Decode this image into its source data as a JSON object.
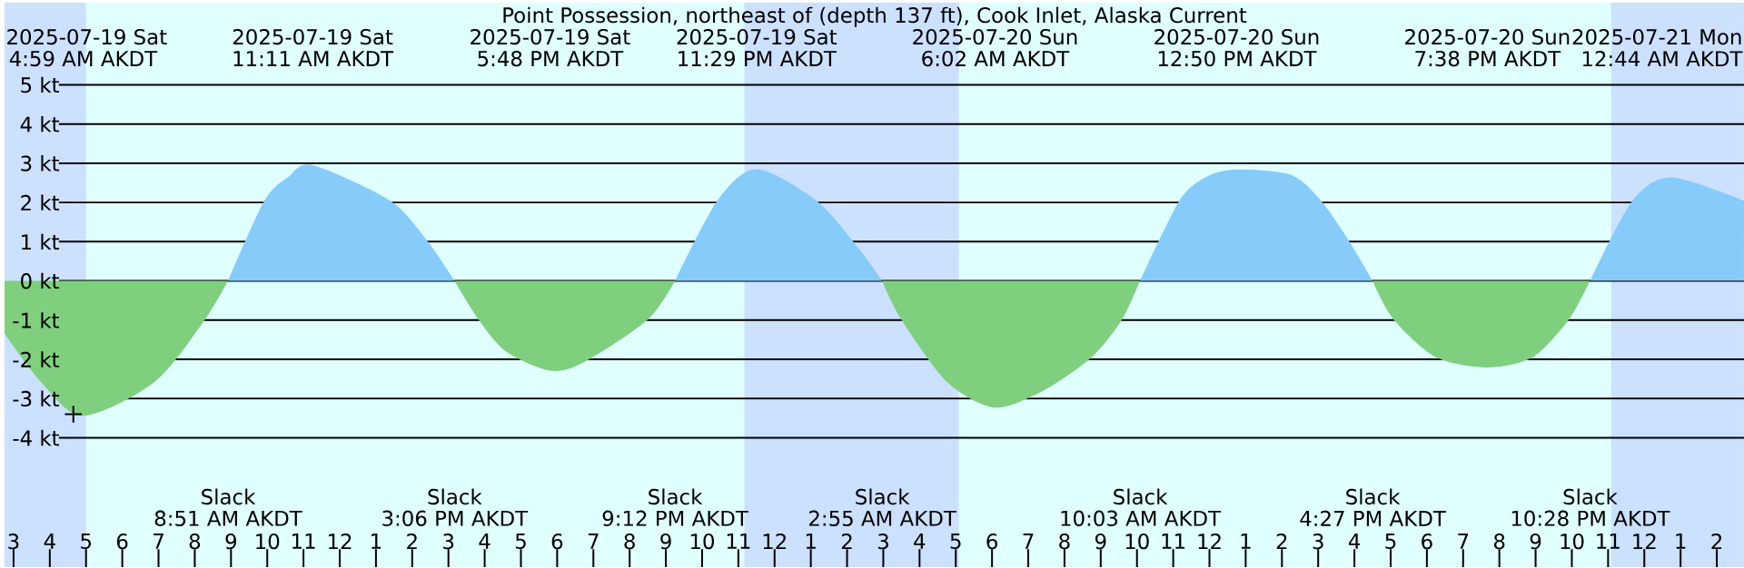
{
  "chart_data": {
    "type": "area",
    "title": "Point Possession, northeast of (depth 137 ft), Cook Inlet, Alaska Current",
    "xlim": [
      "2025-07-19T02:45",
      "2025-07-21T02:45"
    ],
    "ylim": [
      -7.3,
      7.1
    ],
    "grid": "y",
    "xticks": [
      {
        "value": "2025-07-19T03:00",
        "label": "3"
      },
      {
        "value": "2025-07-19T04:00",
        "label": "4"
      },
      {
        "value": "2025-07-19T05:00",
        "label": "5"
      },
      {
        "value": "2025-07-19T06:00",
        "label": "6"
      },
      {
        "value": "2025-07-19T07:00",
        "label": "7"
      },
      {
        "value": "2025-07-19T08:00",
        "label": "8"
      },
      {
        "value": "2025-07-19T09:00",
        "label": "9"
      },
      {
        "value": "2025-07-19T10:00",
        "label": "10"
      },
      {
        "value": "2025-07-19T11:00",
        "label": "11"
      },
      {
        "value": "2025-07-19T12:00",
        "label": "12"
      },
      {
        "value": "2025-07-19T13:00",
        "label": "1"
      },
      {
        "value": "2025-07-19T14:00",
        "label": "2"
      },
      {
        "value": "2025-07-19T15:00",
        "label": "3"
      },
      {
        "value": "2025-07-19T16:00",
        "label": "4"
      },
      {
        "value": "2025-07-19T17:00",
        "label": "5"
      },
      {
        "value": "2025-07-19T18:00",
        "label": "6"
      },
      {
        "value": "2025-07-19T19:00",
        "label": "7"
      },
      {
        "value": "2025-07-19T20:00",
        "label": "8"
      },
      {
        "value": "2025-07-19T21:00",
        "label": "9"
      },
      {
        "value": "2025-07-19T22:00",
        "label": "10"
      },
      {
        "value": "2025-07-19T23:00",
        "label": "11"
      },
      {
        "value": "2025-07-20T00:00",
        "label": "12"
      },
      {
        "value": "2025-07-20T01:00",
        "label": "1"
      },
      {
        "value": "2025-07-20T02:00",
        "label": "2"
      },
      {
        "value": "2025-07-20T03:00",
        "label": "3"
      },
      {
        "value": "2025-07-20T04:00",
        "label": "4"
      },
      {
        "value": "2025-07-20T05:00",
        "label": "5"
      },
      {
        "value": "2025-07-20T06:00",
        "label": "6"
      },
      {
        "value": "2025-07-20T07:00",
        "label": "7"
      },
      {
        "value": "2025-07-20T08:00",
        "label": "8"
      },
      {
        "value": "2025-07-20T09:00",
        "label": "9"
      },
      {
        "value": "2025-07-20T10:00",
        "label": "10"
      },
      {
        "value": "2025-07-20T11:00",
        "label": "11"
      },
      {
        "value": "2025-07-20T12:00",
        "label": "12"
      },
      {
        "value": "2025-07-20T13:00",
        "label": "1"
      },
      {
        "value": "2025-07-20T14:00",
        "label": "2"
      },
      {
        "value": "2025-07-20T15:00",
        "label": "3"
      },
      {
        "value": "2025-07-20T16:00",
        "label": "4"
      },
      {
        "value": "2025-07-20T17:00",
        "label": "5"
      },
      {
        "value": "2025-07-20T18:00",
        "label": "6"
      },
      {
        "value": "2025-07-20T19:00",
        "label": "7"
      },
      {
        "value": "2025-07-20T20:00",
        "label": "8"
      },
      {
        "value": "2025-07-20T21:00",
        "label": "9"
      },
      {
        "value": "2025-07-20T22:00",
        "label": "10"
      },
      {
        "value": "2025-07-20T23:00",
        "label": "11"
      },
      {
        "value": "2025-07-21T00:00",
        "label": "12"
      },
      {
        "value": "2025-07-21T01:00",
        "label": "1"
      },
      {
        "value": "2025-07-21T02:00",
        "label": "2"
      }
    ],
    "yticks": [
      {
        "value": 5,
        "label": "5 kt"
      },
      {
        "value": 4,
        "label": "4 kt"
      },
      {
        "value": 3,
        "label": "3 kt"
      },
      {
        "value": 2,
        "label": "2 kt"
      },
      {
        "value": 1,
        "label": "1 kt"
      },
      {
        "value": 0,
        "label": "0 kt"
      },
      {
        "value": -1,
        "label": "-1 kt"
      },
      {
        "value": -2,
        "label": "-2 kt"
      },
      {
        "value": -3,
        "label": "-3 kt"
      },
      {
        "value": -4,
        "label": "-4 kt"
      }
    ],
    "bands": [
      {
        "axis": "x",
        "from": "2025-07-19T02:45",
        "to": "2025-07-19T05:00",
        "color": "#cce0ff"
      },
      {
        "axis": "x",
        "from": "2025-07-19T23:10",
        "to": "2025-07-20T05:05",
        "color": "#cce0ff"
      },
      {
        "axis": "x",
        "from": "2025-07-20T23:05",
        "to": "2025-07-21T02:45",
        "color": "#cce0ff"
      }
    ],
    "series": [
      {
        "color": "#7fcf7f",
        "x": [
          "2025-07-19T02:45",
          "2025-07-19T03:45",
          "2025-07-19T04:55",
          "2025-07-19T06:54",
          "2025-07-19T08:15",
          "2025-07-19T08:55",
          "2025-07-19T12:00",
          "2025-07-19T15:10",
          "2025-07-19T15:50",
          "2025-07-19T16:35",
          "2025-07-19T17:48",
          "2025-07-19T18:45",
          "2025-07-19T20:30",
          "2025-07-19T21:15",
          "2025-07-20T00:00",
          "2025-07-20T02:58",
          "2025-07-20T03:30",
          "2025-07-20T04:45",
          "2025-07-20T06:05",
          "2025-07-20T07:25",
          "2025-07-20T08:45",
          "2025-07-20T09:35",
          "2025-07-20T10:05",
          "2025-07-20T13:00",
          "2025-07-20T16:30",
          "2025-07-20T17:05",
          "2025-07-20T18:15",
          "2025-07-20T19:40",
          "2025-07-20T20:55",
          "2025-07-20T21:55",
          "2025-07-20T22:30"
        ],
        "values": [
          -1.34,
          -2.57,
          -3.44,
          -2.57,
          -1.03,
          0,
          null,
          0,
          -0.99,
          -1.8,
          -2.29,
          -2.07,
          -0.99,
          0,
          null,
          0,
          -0.99,
          -2.57,
          -3.23,
          -2.8,
          -1.95,
          -0.99,
          0,
          null,
          0,
          -0.99,
          -1.95,
          -2.21,
          -1.95,
          -0.99,
          0
        ]
      },
      {
        "color": "#87cbfa",
        "x": [
          "2025-07-19T08:55",
          "2025-07-19T09:55",
          "2025-07-19T10:35",
          "2025-07-19T11:15",
          "2025-07-19T13:24",
          "2025-07-19T14:24",
          "2025-07-19T15:10",
          "2025-07-19T18:00",
          "2025-07-19T21:15",
          "2025-07-19T22:25",
          "2025-07-19T23:30",
          "2025-07-20T01:10",
          "2025-07-20T02:20",
          "2025-07-20T02:58",
          "2025-07-20T06:00",
          "2025-07-20T10:05",
          "2025-07-20T11:10",
          "2025-07-20T11:55",
          "2025-07-20T12:45",
          "2025-07-20T14:15",
          "2025-07-20T15:05",
          "2025-07-20T15:50",
          "2025-07-20T16:30",
          "2025-07-20T19:00",
          "2025-07-20T22:30",
          "2025-07-20T23:40",
          "2025-07-21T00:45",
          "2025-07-21T02:45"
        ],
        "values": [
          0,
          2.04,
          2.65,
          2.95,
          2.04,
          1.04,
          0,
          null,
          0,
          2.04,
          2.85,
          2.04,
          0.81,
          0,
          null,
          0,
          2.04,
          2.65,
          2.84,
          2.7,
          2.04,
          1.04,
          0,
          null,
          0,
          2.04,
          2.64,
          2.04
        ]
      },
      {
        "type": "scatter",
        "color": "#000000",
        "marker": "cross",
        "x": [
          "2025-07-19T04:39"
        ],
        "values": [
          -3.4
        ]
      }
    ],
    "annotations": [
      "2025-07-19 Sat",
      "4:59 AM AKDT",
      "2025-07-19 Sat",
      "11:11 AM AKDT",
      "2025-07-19 Sat",
      "5:48 PM AKDT",
      "2025-07-19 Sat",
      "11:29 PM AKDT",
      "2025-07-20 Sun",
      "6:02 AM AKDT",
      "2025-07-20 Sun",
      "12:50 PM AKDT",
      "2025-07-20 Sun",
      "7:38 PM AKDT",
      "2025-07-21 Mon",
      "12:44 AM AKDT",
      "Slack",
      "8:51 AM AKDT",
      "Slack",
      "3:06 PM AKDT",
      "Slack",
      "9:12 PM AKDT",
      "Slack",
      "2:55 AM AKDT",
      "Slack",
      "10:03 AM AKDT",
      "Slack",
      "4:27 PM AKDT",
      "Slack",
      "10:28 PM AKDT"
    ]
  }
}
